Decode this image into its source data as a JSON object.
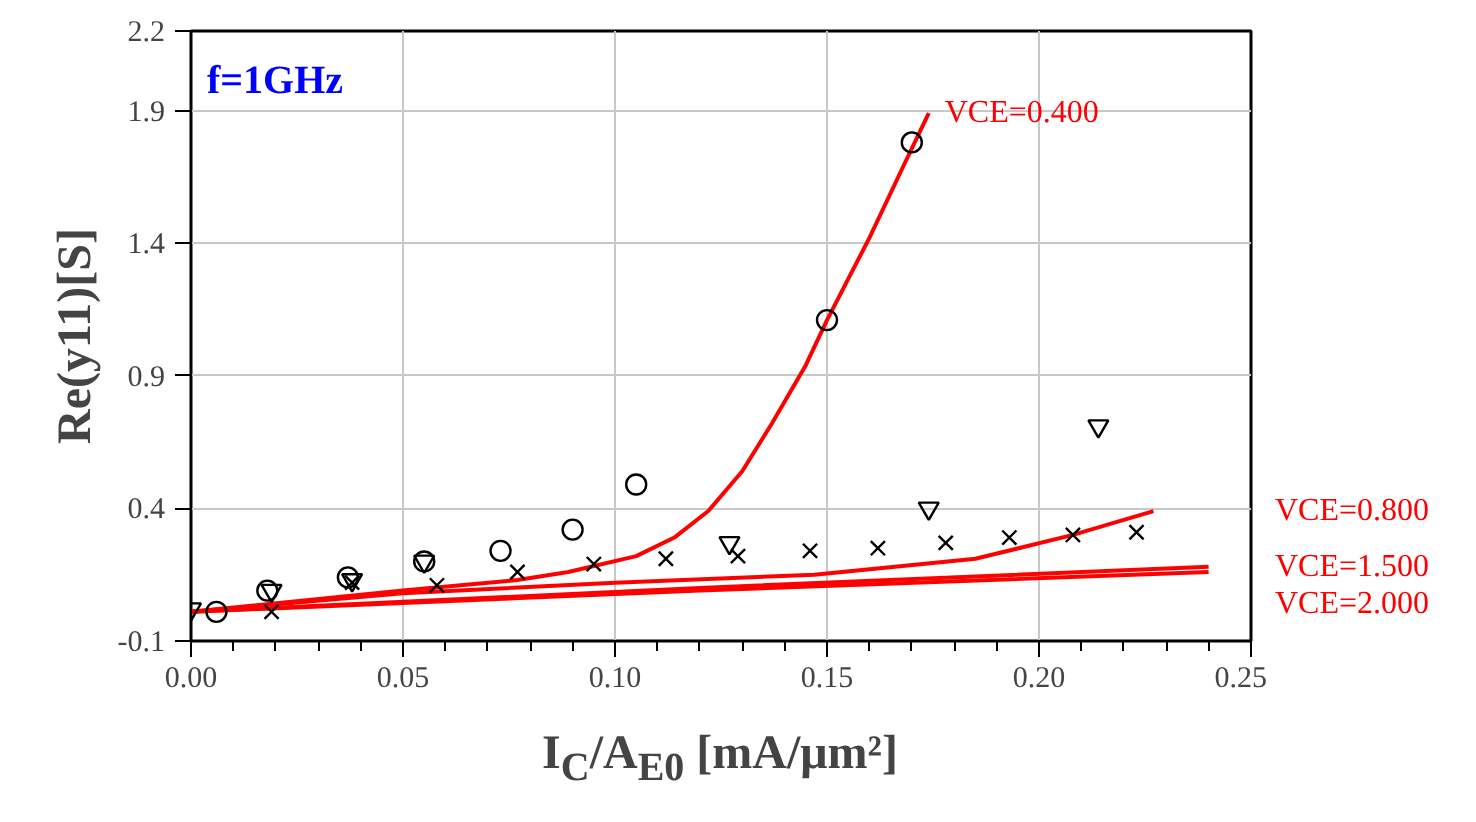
{
  "chart_data": {
    "type": "line",
    "xlabel": "I$_{C}$/A$_{E0}$ [mA/μm²]",
    "ylabel": "Re(y11)[S]",
    "annotations": [
      "f=1GHz"
    ],
    "xlim": [
      0,
      0.25
    ],
    "xticks": [
      {
        "value": 0,
        "label": "0.00"
      },
      0.05,
      {
        "value": 0.1,
        "label": "0.10"
      },
      0.15,
      {
        "value": 0.2,
        "label": "0.20"
      },
      0.25
    ],
    "ylim": [
      -0.1,
      2.2
    ],
    "yticks": [
      -0.1,
      0.4,
      0.9,
      1.4,
      1.9,
      2.2
    ],
    "grid": true,
    "legend": false,
    "series": [
      {
        "name": "VCE=0.400",
        "color": "#ff0000",
        "x": [
          0,
          0.05,
          0.077,
          0.089,
          0.105,
          0.114,
          0.122,
          0.13,
          0.137,
          0.145,
          0.15,
          0.16,
          0.168,
          0.174
        ],
        "values": [
          0.01,
          0.09,
          0.13,
          0.16,
          0.22,
          0.29,
          0.39,
          0.54,
          0.72,
          0.94,
          1.11,
          1.42,
          1.69,
          1.89
        ]
      },
      {
        "name": "VCE=0.800",
        "color": "#ff0000",
        "x": [
          0,
          0.05,
          0.1,
          0.147,
          0.185,
          0.208,
          0.227
        ],
        "values": [
          0.01,
          0.08,
          0.12,
          0.15,
          0.21,
          0.3,
          0.39
        ]
      },
      {
        "name": "VCE=1.500",
        "color": "#ff0000",
        "x": [
          0,
          0.12,
          0.24
        ],
        "values": [
          0.01,
          0.1,
          0.18
        ]
      },
      {
        "name": "VCE=2.000",
        "color": "#ff0000",
        "x": [
          0,
          0.12,
          0.24
        ],
        "values": [
          0.01,
          0.09,
          0.16
        ]
      },
      {
        "type": "scatter",
        "marker": "circle",
        "color": "#000000",
        "x": [
          0.006,
          0.018,
          0.037,
          0.055,
          0.073,
          0.09,
          0.105,
          0.15,
          0.17
        ],
        "values": [
          0.01,
          0.09,
          0.14,
          0.2,
          0.24,
          0.32,
          0.49,
          1.11,
          1.78
        ]
      },
      {
        "type": "scatter",
        "marker": "triangle",
        "color": "#000000",
        "x": [
          0,
          0.019,
          0.038,
          0.055,
          0.127,
          0.174,
          0.214
        ],
        "values": [
          0.02,
          0.09,
          0.13,
          0.2,
          0.27,
          0.4,
          0.71
        ]
      },
      {
        "type": "scatter",
        "marker": "cross",
        "color": "#000000",
        "x": [
          0.019,
          0.038,
          0.058,
          0.077,
          0.095,
          0.112,
          0.129,
          0.146,
          0.162,
          0.178,
          0.193,
          0.208,
          0.223
        ],
        "values": [
          0.01,
          0.12,
          0.11,
          0.16,
          0.19,
          0.21,
          0.22,
          0.24,
          0.25,
          0.27,
          0.29,
          0.3,
          0.31
        ]
      }
    ]
  }
}
